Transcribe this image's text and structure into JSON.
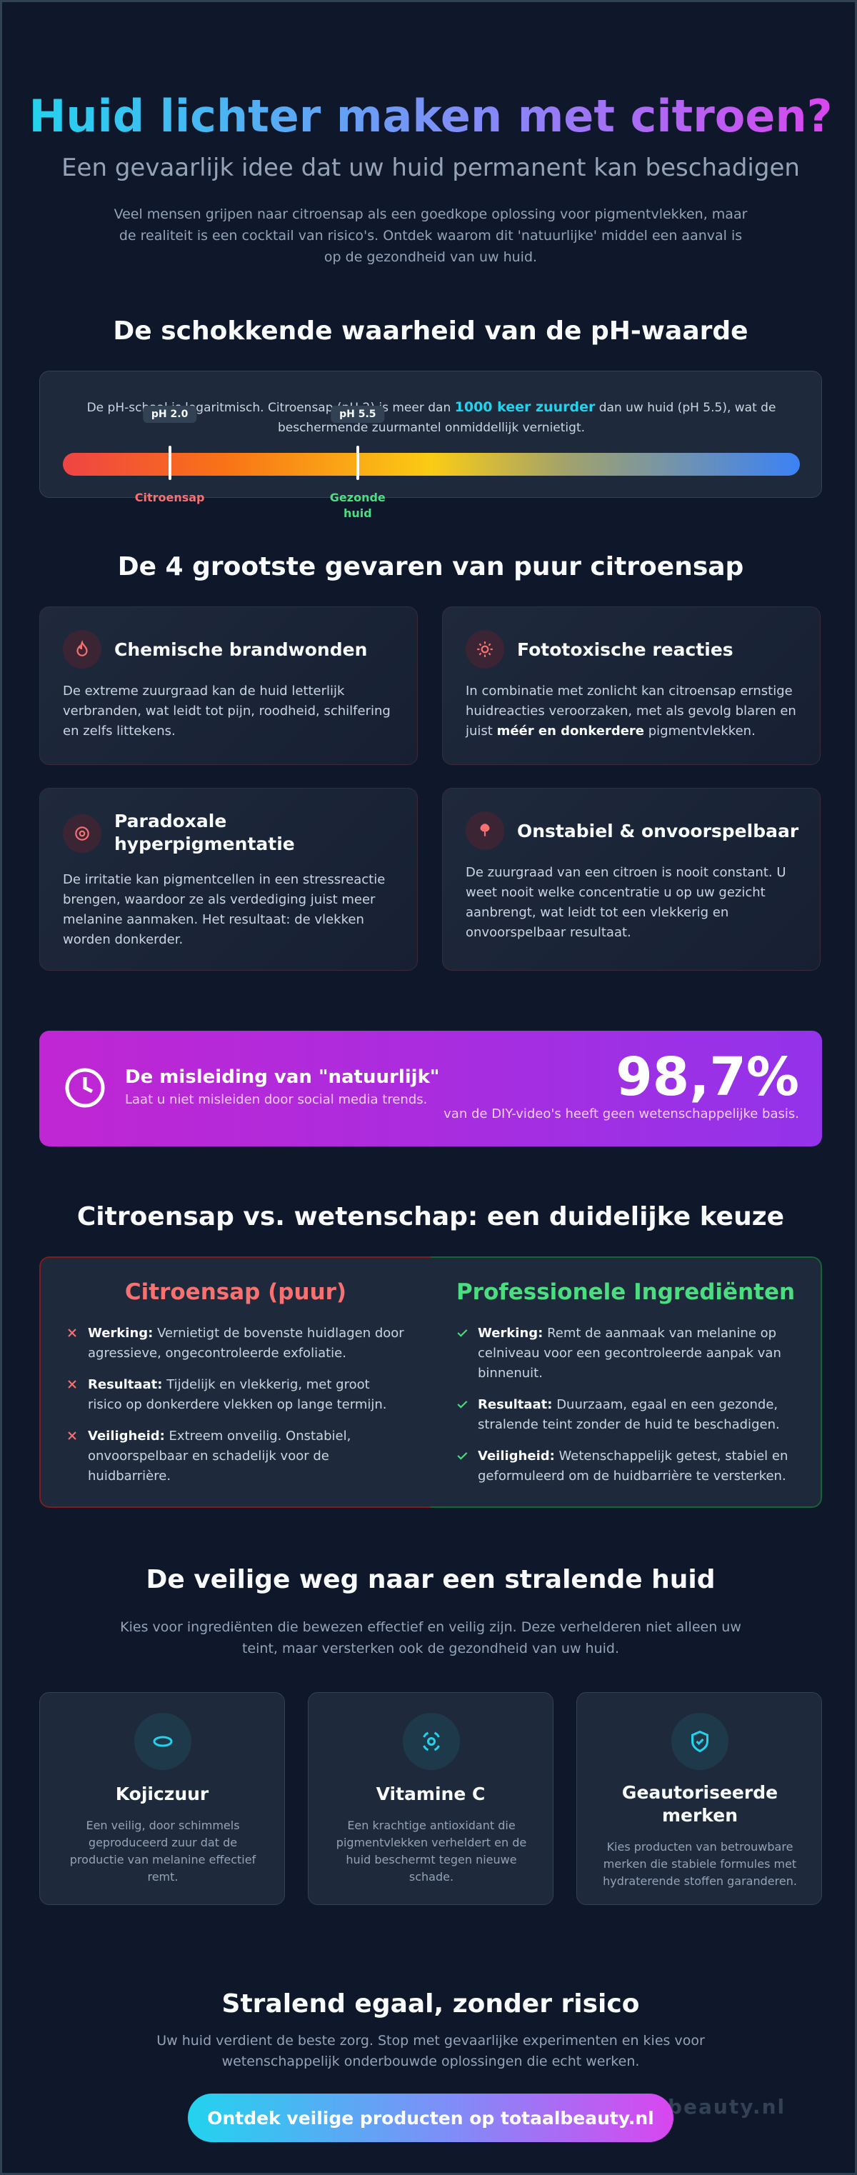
{
  "hero": {
    "title": "Huid lichter maken met citroen?",
    "subtitle": "Een gevaarlijk idee dat uw huid permanent kan beschadigen",
    "intro": "Veel mensen grijpen naar citroensap als een goedkope oplossing voor pigmentvlekken, maar de realiteit is een cocktail van risico's. Ontdek waarom dit 'natuurlijke' middel een aanval is op de gezondheid van uw huid."
  },
  "ph_section": {
    "title": "De schokkende waarheid van de pH-waarde",
    "text_before": "De pH-schaal is logaritmisch. Citroensap (pH 2) is meer dan ",
    "highlight": "1000 keer zuurder",
    "text_after": " dan uw huid (pH 5.5), wat de beschermende zuurmantel onmiddellijk vernietigt.",
    "marker_lemon_tag": "pH 2.0",
    "marker_skin_tag": "pH 5.5",
    "marker_lemon_label": "Citroensap",
    "marker_skin_label": "Gezonde huid",
    "marker_lemon_fraction": 0.145,
    "marker_skin_fraction": 0.4
  },
  "dangers": {
    "title": "De 4 grootste gevaren van puur citroensap",
    "items": [
      {
        "title": "Chemische brandwonden",
        "text": "De extreme zuurgraad kan de huid letterlijk verbranden, wat leidt tot pijn, roodheid, schilfering en zelfs littekens.",
        "icon": "burn-icon"
      },
      {
        "title": "Fototoxische reacties",
        "text_before": "In combinatie met zonlicht kan citroensap ernstige huidreacties veroorzaken, met als gevolg blaren en juist ",
        "text_bold": "méér en donkerdere",
        "text_after": " pigmentvlekken.",
        "icon": "sun-icon"
      },
      {
        "title": "Paradoxale hyperpigmentatie",
        "text": "De irritatie kan pigmentcellen in een stressreactie brengen, waardoor ze als verdediging juist meer melanine aanmaken. Het resultaat: de vlekken worden donkerder.",
        "icon": "target-icon"
      },
      {
        "title": "Onstabiel & onvoorspelbaar",
        "text": "De zuurgraad van een citroen is nooit constant. U weet nooit welke concentratie u op uw gezicht aanbrengt, wat leidt tot een vlekkerig en onvoorspelbaar resultaat.",
        "icon": "lemon-icon"
      }
    ]
  },
  "banner": {
    "title": "De misleiding van \"natuurlijk\"",
    "subtitle": "Laat u niet misleiden door social media trends.",
    "stat": "98,7%",
    "stat_caption": "van de DIY-video's heeft geen wetenschappelijke basis."
  },
  "comparison": {
    "title": "Citroensap vs. wetenschap: een duidelijke keuze",
    "left": {
      "title": "Citroensap (puur)",
      "items": [
        {
          "label": "Werking:",
          "text": " Vernietigt de bovenste huidlagen door agressieve, ongecontroleerde exfoliatie."
        },
        {
          "label": "Resultaat:",
          "text": " Tijdelijk en vlekkerig, met groot risico op donkerdere vlekken op lange termijn."
        },
        {
          "label": "Veiligheid:",
          "text": " Extreem onveilig. Onstabiel, onvoorspelbaar en schadelijk voor de huidbarrière."
        }
      ]
    },
    "right": {
      "title": "Professionele Ingrediënten",
      "items": [
        {
          "label": "Werking:",
          "text": " Remt de aanmaak van melanine op celniveau voor een gecontroleerde aanpak van binnenuit."
        },
        {
          "label": "Resultaat:",
          "text": " Duurzaam, egaal en een gezonde, stralende teint zonder de huid te beschadigen."
        },
        {
          "label": "Veiligheid:",
          "text": " Wetenschappelijk getest, stabiel en geformuleerd om de huidbarrière te versterken."
        }
      ]
    }
  },
  "safe": {
    "title": "De veilige weg naar een stralende huid",
    "intro": "Kies voor ingrediënten die bewezen effectief en veilig zijn. Deze verhelderen niet alleen uw teint, maar versterken ook de gezondheid van uw huid.",
    "cards": [
      {
        "title": "Kojiczuur",
        "text": "Een veilig, door schimmels geproduceerd zuur dat de productie van melanine effectief remt.",
        "icon": "ring-icon"
      },
      {
        "title": "Vitamine C",
        "text": "Een krachtige antioxidant die pigmentvlekken verheldert en de huid beschermt tegen nieuwe schade.",
        "icon": "atom-icon"
      },
      {
        "title": "Geautoriseerde merken",
        "text": "Kies producten van betrouwbare merken die stabiele formules met hydraterende stoffen garanderen.",
        "icon": "shield-check-icon"
      }
    ]
  },
  "cta": {
    "title": "Stralend egaal, zonder risico",
    "text": "Uw huid verdient de beste zorg. Stop met gevaarlijke experimenten en kies voor wetenschappelijk onderbouwde oplossingen die echt werken.",
    "button": "Ontdek veilige producten op totaalbeauty.nl",
    "watermark": "beauty.nl"
  },
  "colors": {
    "background": "#0f172a",
    "card": "#1e293b",
    "danger": "#f87171",
    "success": "#4ade80",
    "accent_cyan": "#22d3ee",
    "accent_purple": "#9333ea"
  }
}
